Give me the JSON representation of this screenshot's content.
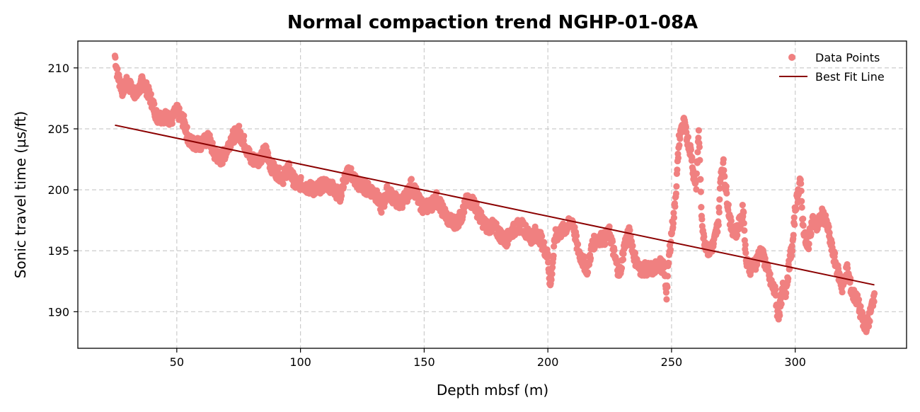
{
  "chart_data": {
    "type": "scatter",
    "title": "Normal compaction trend NGHP-01-08A",
    "xlabel": "Depth mbsf (m)",
    "ylabel": "Sonic travel time (µs/ft)",
    "xlim": [
      10,
      345
    ],
    "ylim": [
      187,
      212.2
    ],
    "xticks": [
      50,
      100,
      150,
      200,
      250,
      300
    ],
    "yticks": [
      190,
      195,
      200,
      205,
      210
    ],
    "grid": true,
    "grid_style": "dashed",
    "legend_position": "top-right",
    "colors": {
      "points": "#f08080",
      "fit_line": "#8b0000",
      "grid": "#cccccc"
    },
    "series": [
      {
        "name": "Data Points",
        "kind": "scatter",
        "trace": [
          [
            25,
            211
          ],
          [
            26,
            209.5
          ],
          [
            28,
            208.2
          ],
          [
            30,
            208.8
          ],
          [
            32,
            208.2
          ],
          [
            34,
            207.8
          ],
          [
            36,
            208.9
          ],
          [
            38,
            208.2
          ],
          [
            40,
            207.2
          ],
          [
            42,
            206.0
          ],
          [
            45,
            206.0
          ],
          [
            48,
            205.8
          ],
          [
            50,
            206.5
          ],
          [
            53,
            205.5
          ],
          [
            55,
            204.0
          ],
          [
            57,
            203.8
          ],
          [
            60,
            203.8
          ],
          [
            63,
            204.2
          ],
          [
            65,
            203.0
          ],
          [
            68,
            202.5
          ],
          [
            70,
            203.2
          ],
          [
            72,
            204.2
          ],
          [
            75,
            204.8
          ],
          [
            77,
            204.0
          ],
          [
            80,
            202.5
          ],
          [
            83,
            202.5
          ],
          [
            86,
            203.2
          ],
          [
            88,
            202.0
          ],
          [
            90,
            201.5
          ],
          [
            93,
            201.0
          ],
          [
            95,
            201.8
          ],
          [
            98,
            200.5
          ],
          [
            100,
            200.5
          ],
          [
            103,
            200.2
          ],
          [
            106,
            200.0
          ],
          [
            110,
            200.5
          ],
          [
            113,
            200.2
          ],
          [
            116,
            199.5
          ],
          [
            118,
            201.0
          ],
          [
            120,
            201.5
          ],
          [
            123,
            200.5
          ],
          [
            126,
            200.2
          ],
          [
            130,
            199.8
          ],
          [
            133,
            198.5
          ],
          [
            135,
            199.8
          ],
          [
            138,
            199.3
          ],
          [
            140,
            198.8
          ],
          [
            143,
            199.5
          ],
          [
            145,
            200.5
          ],
          [
            148,
            199.0
          ],
          [
            150,
            198.5
          ],
          [
            153,
            198.8
          ],
          [
            155,
            199.3
          ],
          [
            157,
            198.5
          ],
          [
            160,
            197.5
          ],
          [
            163,
            197.3
          ],
          [
            165,
            197.8
          ],
          [
            167,
            199.0
          ],
          [
            170,
            199.0
          ],
          [
            172,
            198.0
          ],
          [
            175,
            197.0
          ],
          [
            178,
            197.0
          ],
          [
            180,
            196.5
          ],
          [
            183,
            195.8
          ],
          [
            185,
            196.5
          ],
          [
            188,
            197.0
          ],
          [
            190,
            197.0
          ],
          [
            193,
            196.0
          ],
          [
            195,
            196.5
          ],
          [
            197,
            196.0
          ],
          [
            200,
            194.5
          ],
          [
            201,
            192.0
          ],
          [
            203,
            196.2
          ],
          [
            205,
            196.5
          ],
          [
            208,
            197.0
          ],
          [
            210,
            197.5
          ],
          [
            212,
            195.2
          ],
          [
            214,
            194.2
          ],
          [
            216,
            193.5
          ],
          [
            218,
            195.5
          ],
          [
            220,
            196.0
          ],
          [
            223,
            196.0
          ],
          [
            225,
            196.5
          ],
          [
            227,
            194.5
          ],
          [
            229,
            193.0
          ],
          [
            231,
            195.5
          ],
          [
            233,
            196.5
          ],
          [
            235,
            194.5
          ],
          [
            237,
            193.5
          ],
          [
            240,
            193.5
          ],
          [
            243,
            193.5
          ],
          [
            245,
            194.0
          ],
          [
            247,
            193.5
          ],
          [
            248,
            191.5
          ],
          [
            249,
            194.5
          ],
          [
            250,
            196.5
          ],
          [
            251,
            198.0
          ],
          [
            252,
            200.5
          ],
          [
            253,
            204.0
          ],
          [
            254,
            205.0
          ],
          [
            255,
            205.5
          ],
          [
            256,
            204.5
          ],
          [
            258,
            203.0
          ],
          [
            259,
            201.0
          ],
          [
            260,
            200.5
          ],
          [
            261,
            205.0
          ],
          [
            262,
            198.5
          ],
          [
            263,
            196.0
          ],
          [
            265,
            195.0
          ],
          [
            267,
            195.5
          ],
          [
            269,
            197.5
          ],
          [
            270,
            201.5
          ],
          [
            271,
            202.0
          ],
          [
            272,
            200.0
          ],
          [
            274,
            197.0
          ],
          [
            276,
            196.5
          ],
          [
            278,
            197.5
          ],
          [
            279,
            198.5
          ],
          [
            280,
            194.5
          ],
          [
            282,
            193.5
          ],
          [
            284,
            194.0
          ],
          [
            286,
            195.0
          ],
          [
            288,
            194.0
          ],
          [
            290,
            192.5
          ],
          [
            292,
            191.5
          ],
          [
            293,
            189.5
          ],
          [
            294,
            190.5
          ],
          [
            295,
            192.0
          ],
          [
            296,
            191.5
          ],
          [
            297,
            193.0
          ],
          [
            298,
            194.5
          ],
          [
            299,
            195.5
          ],
          [
            300,
            198.5
          ],
          [
            301,
            199.5
          ],
          [
            302,
            201.0
          ],
          [
            303,
            197.5
          ],
          [
            304,
            196.0
          ],
          [
            305,
            195.0
          ],
          [
            306,
            196.5
          ],
          [
            307,
            197.5
          ],
          [
            309,
            197.0
          ],
          [
            311,
            198.0
          ],
          [
            313,
            197.0
          ],
          [
            315,
            195.0
          ],
          [
            317,
            193.5
          ],
          [
            319,
            192.0
          ],
          [
            321,
            193.5
          ],
          [
            323,
            191.5
          ],
          [
            325,
            191.0
          ],
          [
            327,
            189.5
          ],
          [
            328,
            188.5
          ],
          [
            330,
            189.5
          ],
          [
            332,
            191.5
          ]
        ]
      },
      {
        "name": "Best Fit Line",
        "kind": "line",
        "x": [
          25,
          332
        ],
        "y": [
          205.3,
          192.2
        ]
      }
    ]
  }
}
